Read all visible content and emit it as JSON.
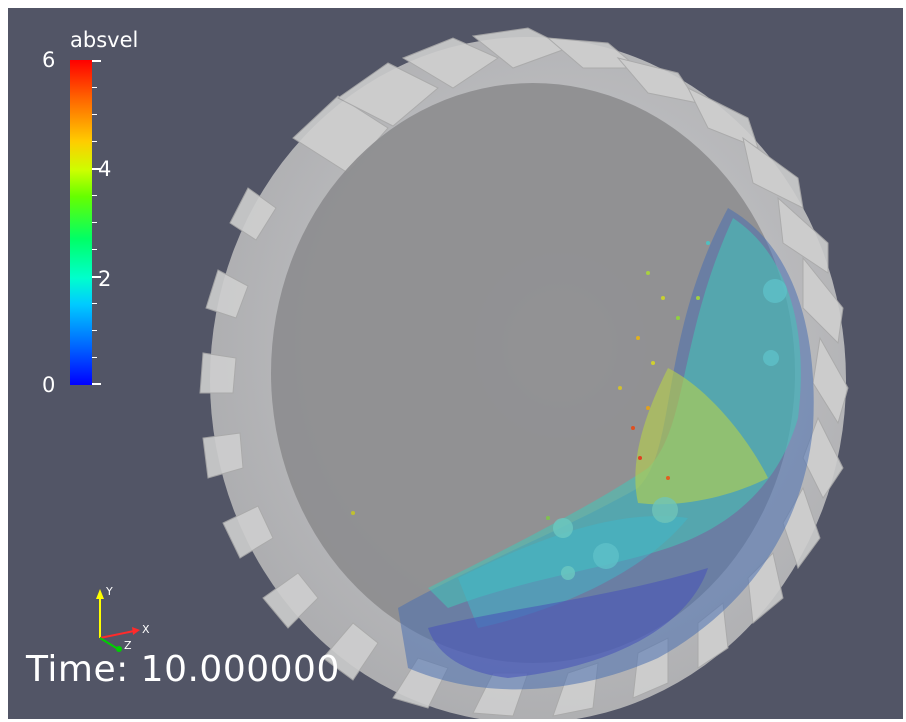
{
  "colorbar": {
    "title": "absvel",
    "max_label": "6",
    "mid_high_label": "4",
    "mid_low_label": "2",
    "min_label": "0",
    "range": [
      0,
      6
    ]
  },
  "axes": {
    "x_label": "X",
    "y_label": "Y",
    "z_label": "Z",
    "x_color": "#ff2a2a",
    "y_color": "#ffff00",
    "z_color": "#00d000"
  },
  "time_label": "Time: 10.000000",
  "colors": {
    "background": "#525566",
    "drum_shell": "#d6d6d6",
    "drum_back": "#8c8c8e"
  }
}
